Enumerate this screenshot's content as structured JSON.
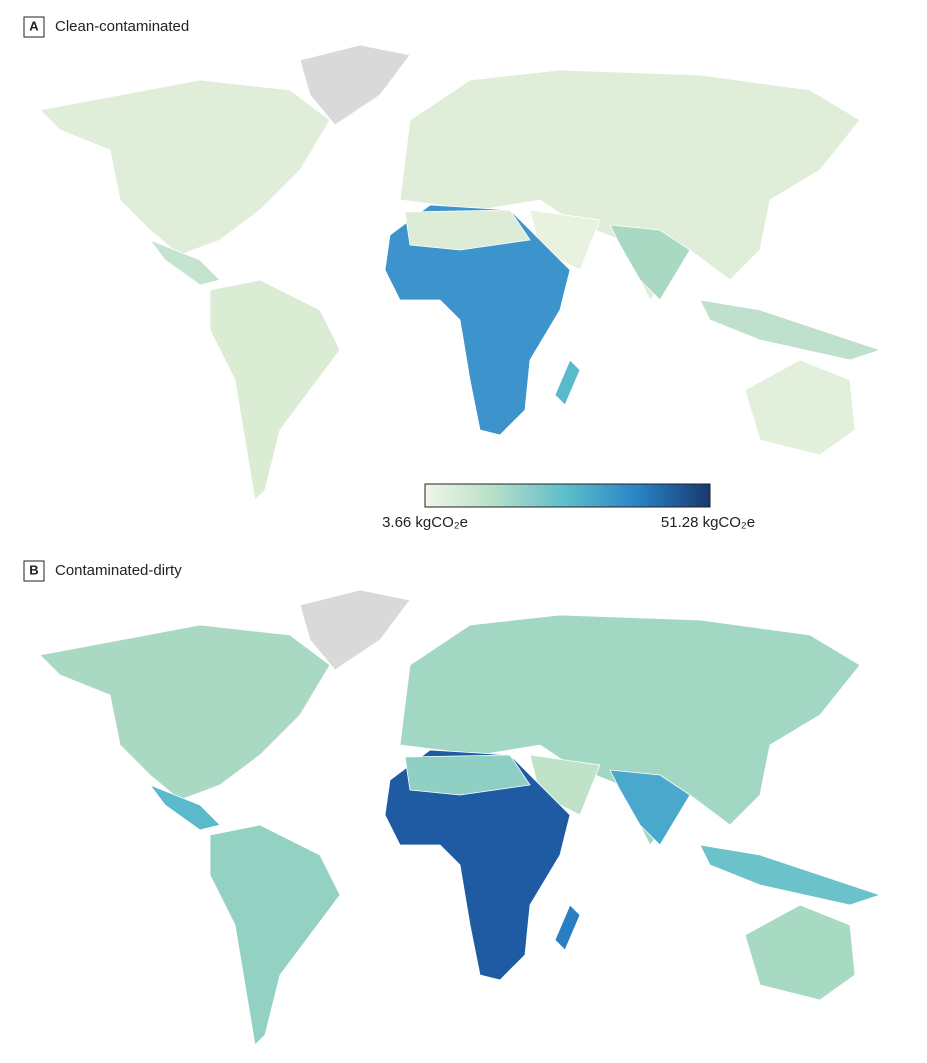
{
  "panels": [
    {
      "tag": "A",
      "title": "Clean-contaminated"
    },
    {
      "tag": "B",
      "title": "Contaminated-dirty"
    }
  ],
  "legend": {
    "min": "3.66 kgCO₂e",
    "max": "51.28 kgCO₂e"
  }
}
